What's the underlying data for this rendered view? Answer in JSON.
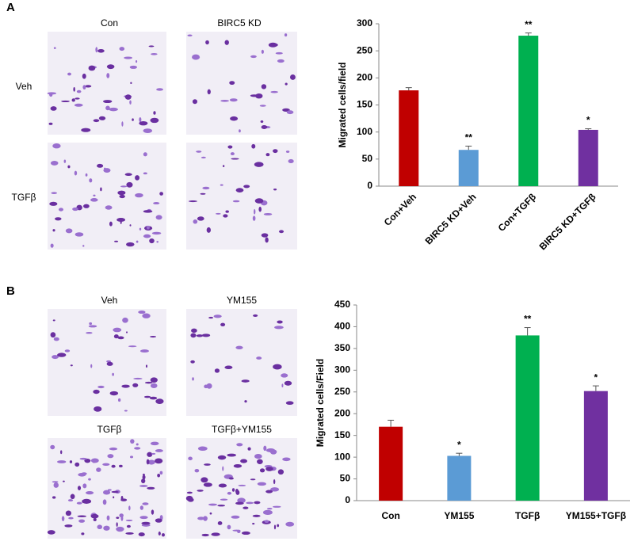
{
  "panels": [
    {
      "label": "A",
      "column_labels": [
        "Con",
        "BIRC5 KD"
      ],
      "row_labels": [
        "Veh",
        "TGFβ"
      ]
    },
    {
      "label": "B",
      "image_labels": [
        "Veh",
        "YM155",
        "TGFβ",
        "TGFβ+YM155"
      ]
    }
  ],
  "chart_data": [
    {
      "type": "bar",
      "ylabel": "Migrated cells/field",
      "categories": [
        "Con+Veh",
        "BIRC5 KD+Veh",
        "Con+TGFβ",
        "BIRC5 KD+TGFβ"
      ],
      "values": [
        177,
        67,
        278,
        104
      ],
      "errors": [
        5,
        7,
        5,
        2
      ],
      "annotations": [
        null,
        "**",
        "**",
        "*"
      ],
      "colors": [
        "#c00000",
        "#5b9bd5",
        "#00b050",
        "#7030a0"
      ],
      "ylim": [
        0,
        300
      ],
      "yticks": [
        0,
        50,
        100,
        150,
        200,
        250,
        300
      ]
    },
    {
      "type": "bar",
      "ylabel": "Migrated cells/Field",
      "categories": [
        "Con",
        "YM155",
        "TGFβ",
        "YM155+TGFβ"
      ],
      "values": [
        170,
        103,
        380,
        252
      ],
      "errors": [
        15,
        6,
        18,
        12
      ],
      "annotations": [
        null,
        "*",
        "**",
        "*"
      ],
      "colors": [
        "#c00000",
        "#5b9bd5",
        "#00b050",
        "#7030a0"
      ],
      "ylim": [
        0,
        450
      ],
      "yticks": [
        0,
        50,
        100,
        150,
        200,
        250,
        300,
        350,
        400,
        450
      ]
    }
  ]
}
